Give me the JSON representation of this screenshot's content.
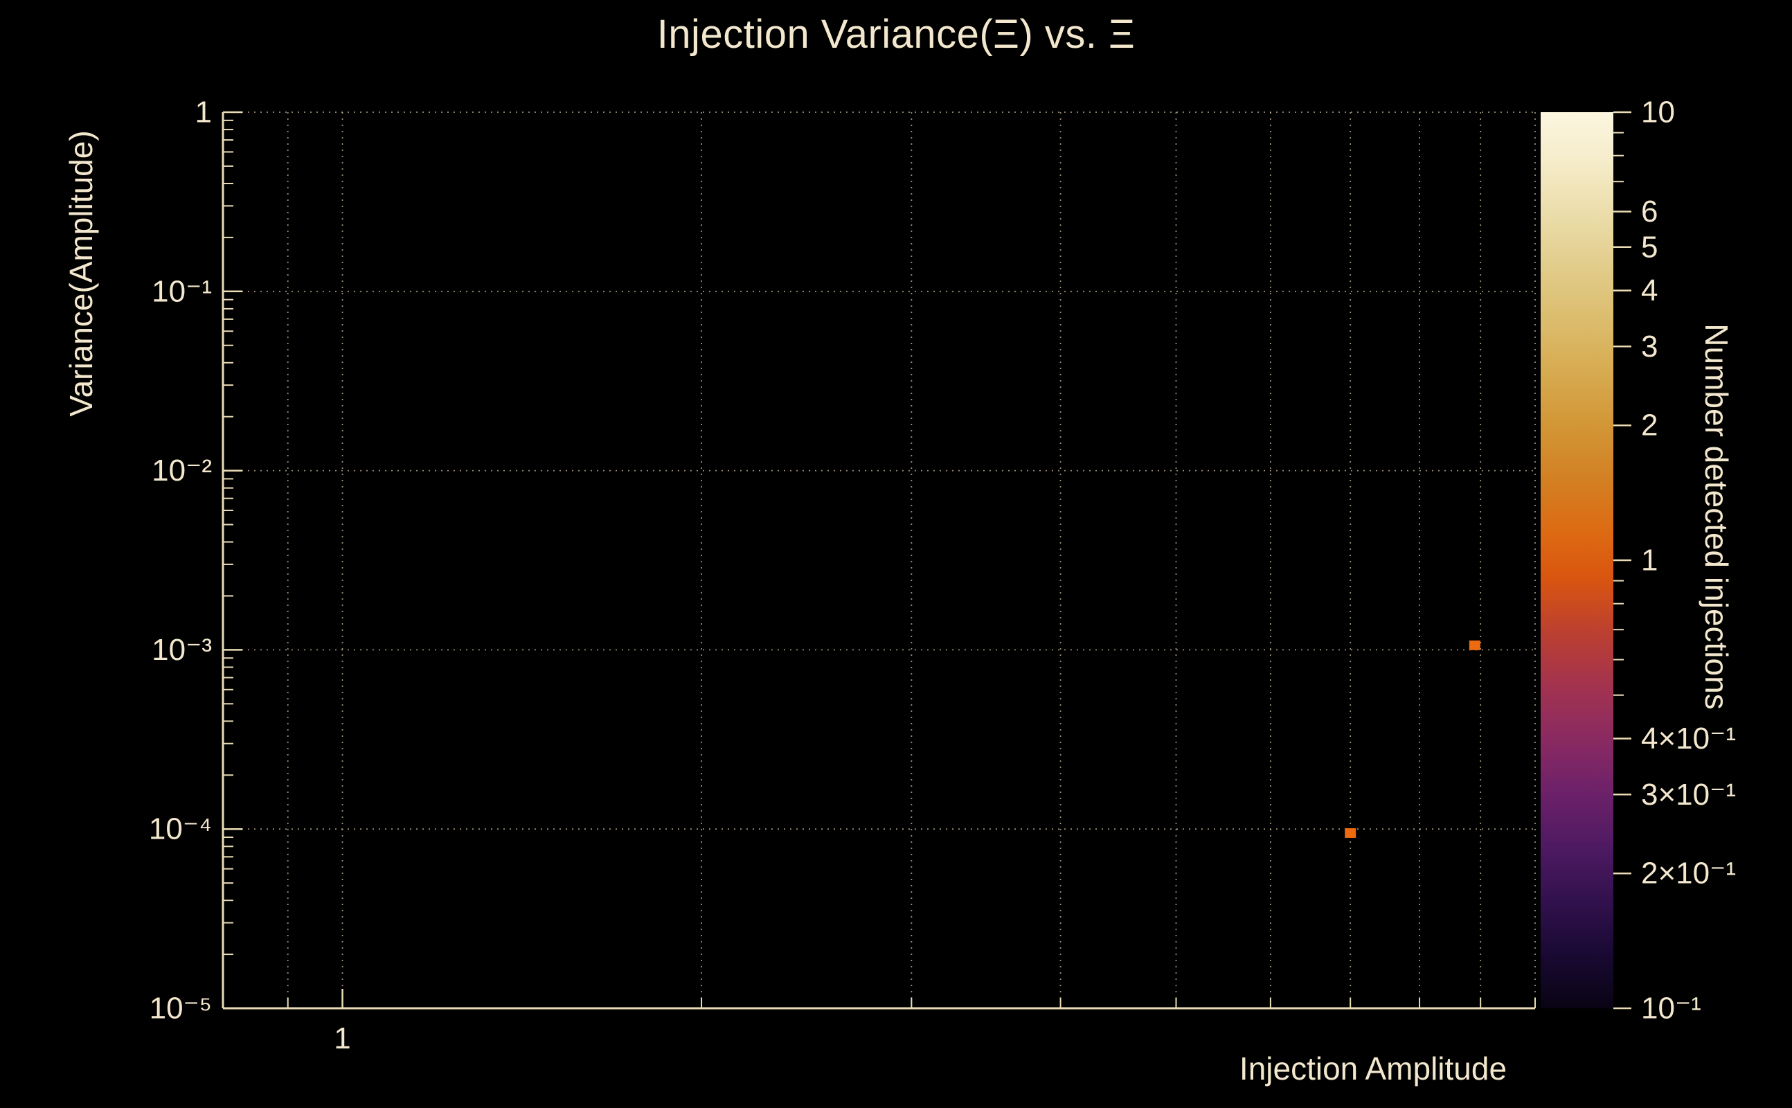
{
  "colors": {
    "background": "#000000",
    "text": "#f3e8cd",
    "axis": "#eadcb6",
    "grid": "#cfc09c",
    "point": "#ed6a0e"
  },
  "chart_data": {
    "type": "scatter",
    "title": "Injection Variance(Ξ) vs. Ξ",
    "xlabel": "Injection Amplitude",
    "ylabel": "Variance(Amplitude)",
    "colorbar_label": "Number detected injections",
    "x_scale": "log",
    "y_scale": "log",
    "xlim": [
      0.794,
      10
    ],
    "ylim": [
      1e-05,
      1
    ],
    "grid": "dotted",
    "legend": "colorbar-right",
    "points": [
      {
        "x": 7.0,
        "y": 9.5e-05,
        "value": 1
      },
      {
        "x": 8.9,
        "y": 0.00106,
        "value": 1
      }
    ],
    "x_ticks": [
      {
        "value": 1,
        "label": "1"
      }
    ],
    "x_minor_ticks": [
      0.9,
      2,
      3,
      4,
      5,
      6,
      7,
      8,
      9,
      10
    ],
    "y_ticks": [
      {
        "value": 1,
        "label": "1"
      },
      {
        "value": 0.1,
        "label": "10⁻¹"
      },
      {
        "value": 0.01,
        "label": "10⁻²"
      },
      {
        "value": 0.001,
        "label": "10⁻³"
      },
      {
        "value": 0.0001,
        "label": "10⁻⁴"
      },
      {
        "value": 1e-05,
        "label": "10⁻⁵"
      }
    ],
    "grid_x": [
      0.9,
      1,
      2,
      3,
      4,
      5,
      6,
      7,
      8,
      9,
      10
    ],
    "grid_y": [
      1,
      0.1,
      0.01,
      0.001,
      0.0001,
      1e-05
    ],
    "colorbar": {
      "min": 0.1,
      "max": 10,
      "scale": "log",
      "ticks": [
        {
          "value": 10,
          "label": "10"
        },
        {
          "value": 6,
          "label": "6"
        },
        {
          "value": 5,
          "label": "5"
        },
        {
          "value": 4,
          "label": "4"
        },
        {
          "value": 3,
          "label": "3"
        },
        {
          "value": 2,
          "label": "2"
        },
        {
          "value": 1,
          "label": "1"
        },
        {
          "value": 0.4,
          "label": "4×10⁻¹"
        },
        {
          "value": 0.3,
          "label": "3×10⁻¹"
        },
        {
          "value": 0.2,
          "label": "2×10⁻¹"
        },
        {
          "value": 0.1,
          "label": "10⁻¹"
        }
      ],
      "minor_ticks": [
        9,
        8,
        7,
        0.9,
        0.8,
        0.7,
        0.6,
        0.5
      ],
      "gradient": [
        {
          "offset": 0.0,
          "color": "#fcf6e0"
        },
        {
          "offset": 0.05,
          "color": "#f6edcc"
        },
        {
          "offset": 0.11,
          "color": "#ecdeac"
        },
        {
          "offset": 0.17,
          "color": "#e2cd8c"
        },
        {
          "offset": 0.23,
          "color": "#dcbd6e"
        },
        {
          "offset": 0.29,
          "color": "#d7ab50"
        },
        {
          "offset": 0.35,
          "color": "#d29636"
        },
        {
          "offset": 0.41,
          "color": "#d38023"
        },
        {
          "offset": 0.47,
          "color": "#dd6a12"
        },
        {
          "offset": 0.52,
          "color": "#d95510"
        },
        {
          "offset": 0.58,
          "color": "#bc4030"
        },
        {
          "offset": 0.64,
          "color": "#a3334f"
        },
        {
          "offset": 0.7,
          "color": "#8a2a62"
        },
        {
          "offset": 0.76,
          "color": "#6c2169"
        },
        {
          "offset": 0.82,
          "color": "#4e1a62"
        },
        {
          "offset": 0.88,
          "color": "#32114e"
        },
        {
          "offset": 0.94,
          "color": "#190933"
        },
        {
          "offset": 1.0,
          "color": "#090414"
        }
      ]
    }
  }
}
